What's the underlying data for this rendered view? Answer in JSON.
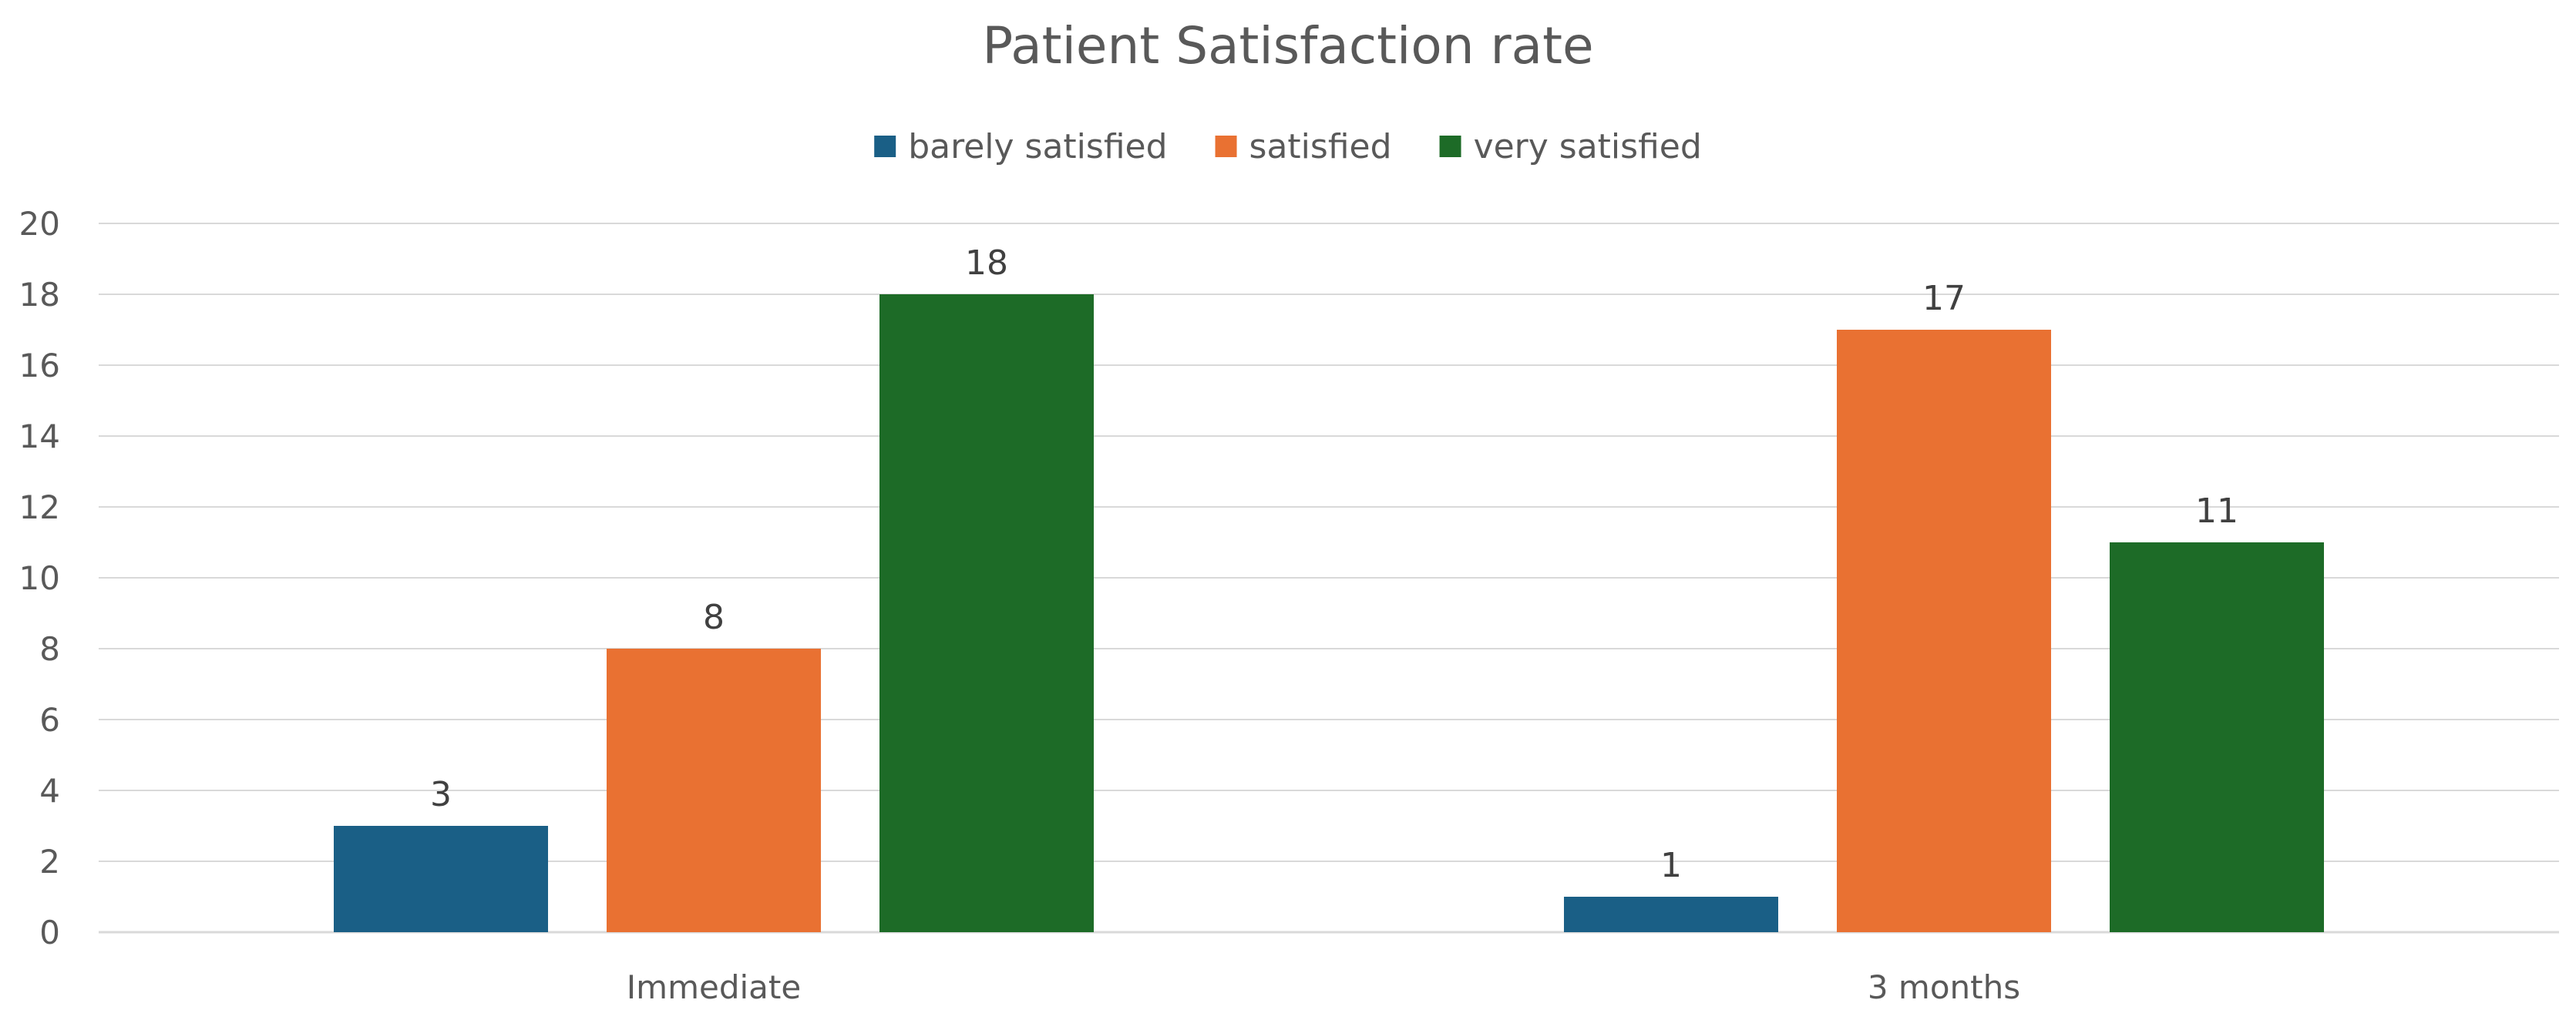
{
  "chart_data": {
    "type": "bar",
    "title": "Patient Satisfaction rate",
    "xlabel": "",
    "ylabel": "",
    "categories": [
      "Immediate",
      "3 months"
    ],
    "series": [
      {
        "name": "barely satisfied",
        "color": "#1a5f86",
        "values": [
          3,
          1
        ]
      },
      {
        "name": "satisfied",
        "color": "#e97132",
        "values": [
          8,
          17
        ]
      },
      {
        "name": "very satisfied",
        "color": "#1d6b27",
        "values": [
          18,
          11
        ]
      }
    ],
    "ylim": [
      0,
      20
    ],
    "yticks": [
      0,
      2,
      4,
      6,
      8,
      10,
      12,
      14,
      16,
      18,
      20
    ],
    "grid": true,
    "legend_position": "top-center",
    "data_labels": true
  }
}
